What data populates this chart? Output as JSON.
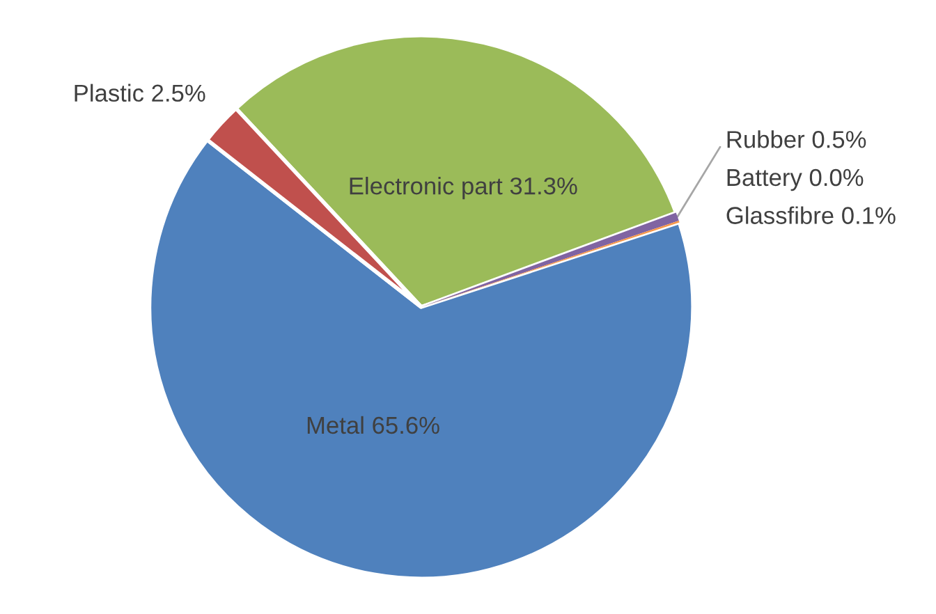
{
  "chart_data": {
    "type": "pie",
    "categories": [
      "Electronic part",
      "Rubber",
      "Battery",
      "Glassfibre",
      "Metal",
      "Plastic"
    ],
    "values": [
      31.3,
      0.5,
      0.0,
      0.1,
      65.6,
      2.5
    ],
    "value_labels": [
      "31.3%",
      "0.5%",
      "0.0%",
      "0.1%",
      "65.6%",
      "2.5%"
    ],
    "colors": [
      "#9bbb59",
      "#8064a2",
      "#4bacc6",
      "#f79646",
      "#4f81bd",
      "#c0504d"
    ],
    "legend": false
  }
}
